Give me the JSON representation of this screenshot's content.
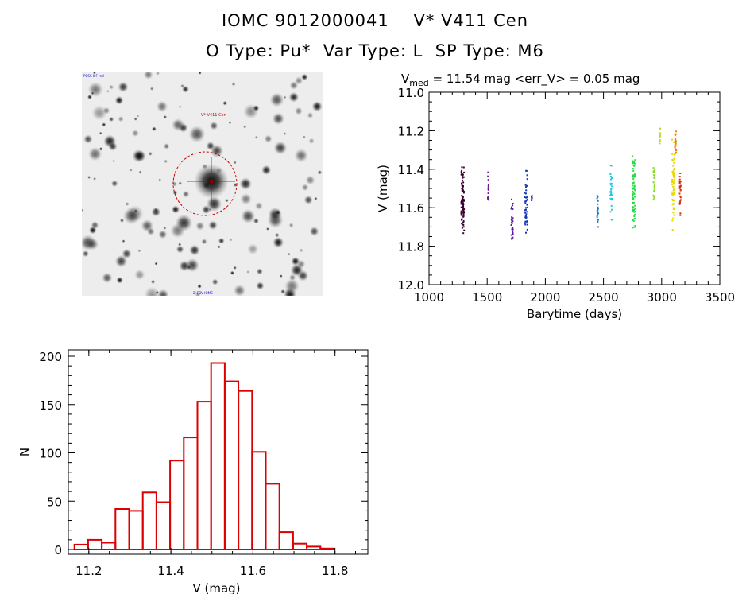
{
  "header": {
    "line1": "IOMC 9012000041    V* V411 Cen",
    "line2": "O Type: Pu*  Var Type: L  SP Type: M6"
  },
  "image_panel": {
    "target_label": "V* V411 Cen",
    "corner_label_top_left": "POSS II F red",
    "corner_label_bottom": "2' FOV  IOMC",
    "circle_color": "#cc0000"
  },
  "chart_data": [
    {
      "type": "scatter",
      "title": "V_med = 11.54 mag <err_V> = 0.05 mag",
      "title_parts": {
        "main": "V",
        "sub": "med",
        "rest": " = 11.54 mag <err_V> = 0.05 mag"
      },
      "xlabel": "Barytime (days)",
      "ylabel": "V (mag)",
      "xlim": [
        1000,
        3500
      ],
      "ylim": [
        12.0,
        11.0
      ],
      "y_inverted": true,
      "xticks": [
        1000,
        1500,
        2000,
        2500,
        3000,
        3500
      ],
      "yticks": [
        11.0,
        11.2,
        11.4,
        11.6,
        11.8,
        12.0
      ],
      "ytick_labels": [
        "11.0",
        "11.2",
        "11.4",
        "11.6",
        "11.8",
        "12.0"
      ],
      "grid": false,
      "clusters": [
        {
          "x": 1290,
          "width": 25,
          "y_min": 11.38,
          "y_max": 11.76,
          "n": 90,
          "color": "#3a0030"
        },
        {
          "x": 1510,
          "width": 10,
          "y_min": 11.4,
          "y_max": 11.58,
          "n": 15,
          "color": "#6a1d8a"
        },
        {
          "x": 1715,
          "width": 15,
          "y_min": 11.52,
          "y_max": 11.82,
          "n": 30,
          "color": "#5a1aa0"
        },
        {
          "x": 1835,
          "width": 25,
          "y_min": 11.38,
          "y_max": 11.77,
          "n": 45,
          "color": "#1a3ab4"
        },
        {
          "x": 1885,
          "width": 8,
          "y_min": 11.52,
          "y_max": 11.58,
          "n": 6,
          "color": "#1a3ab4"
        },
        {
          "x": 2450,
          "width": 10,
          "y_min": 11.5,
          "y_max": 11.72,
          "n": 20,
          "color": "#1a7ac8"
        },
        {
          "x": 2565,
          "width": 15,
          "y_min": 11.34,
          "y_max": 11.7,
          "n": 30,
          "color": "#22c8e0"
        },
        {
          "x": 2760,
          "width": 25,
          "y_min": 11.3,
          "y_max": 11.74,
          "n": 70,
          "color": "#22dd40"
        },
        {
          "x": 2935,
          "width": 15,
          "y_min": 11.3,
          "y_max": 11.58,
          "n": 25,
          "color": "#88dd22"
        },
        {
          "x": 2985,
          "width": 8,
          "y_min": 11.18,
          "y_max": 11.3,
          "n": 10,
          "color": "#bbdd00"
        },
        {
          "x": 3100,
          "width": 20,
          "y_min": 11.18,
          "y_max": 11.74,
          "n": 60,
          "color": "#e8d800"
        },
        {
          "x": 3120,
          "width": 12,
          "y_min": 11.17,
          "y_max": 11.35,
          "n": 25,
          "color": "#f08010"
        },
        {
          "x": 3160,
          "width": 10,
          "y_min": 11.4,
          "y_max": 11.65,
          "n": 25,
          "color": "#d83010"
        }
      ]
    },
    {
      "type": "bar",
      "subtype": "histogram",
      "xlabel": "V (mag)",
      "ylabel": "N",
      "xlim": [
        11.15,
        11.88
      ],
      "ylim": [
        0,
        200
      ],
      "xticks": [
        11.2,
        11.4,
        11.6,
        11.8
      ],
      "xtick_labels": [
        "11.2",
        "11.4",
        "11.6",
        "11.8"
      ],
      "yticks": [
        0,
        50,
        100,
        150,
        200
      ],
      "bin_width": 0.0333,
      "bin_start": 11.165,
      "values": [
        5,
        10,
        7,
        42,
        40,
        59,
        49,
        92,
        116,
        153,
        193,
        174,
        164,
        101,
        68,
        18,
        6,
        3,
        1
      ],
      "edge_color": "#dd0000"
    }
  ]
}
